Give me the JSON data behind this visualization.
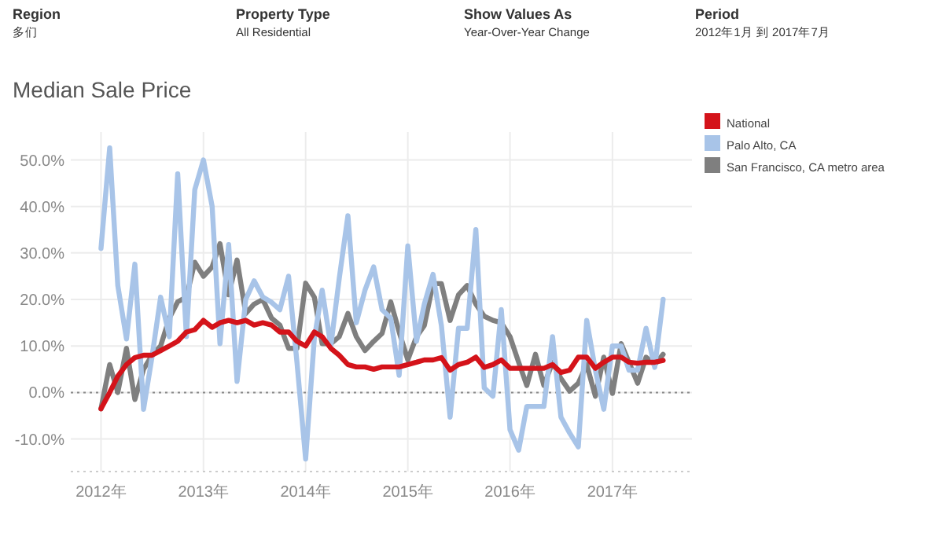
{
  "chart_data": {
    "type": "line",
    "title": "Median Sale Price",
    "annotations": [
      "Region",
      "多们",
      "Property Type",
      "All Residential",
      "Show Values As",
      "Year-Over-Year Change",
      "Period",
      "2012年1月 到 2017年7月"
    ],
    "x": [
      "2012-01",
      "2012-02",
      "2012-03",
      "2012-04",
      "2012-05",
      "2012-06",
      "2012-07",
      "2012-08",
      "2012-09",
      "2012-10",
      "2012-11",
      "2012-12",
      "2013-01",
      "2013-02",
      "2013-03",
      "2013-04",
      "2013-05",
      "2013-06",
      "2013-07",
      "2013-08",
      "2013-09",
      "2013-10",
      "2013-11",
      "2013-12",
      "2014-01",
      "2014-02",
      "2014-03",
      "2014-04",
      "2014-05",
      "2014-06",
      "2014-07",
      "2014-08",
      "2014-09",
      "2014-10",
      "2014-11",
      "2014-12",
      "2015-01",
      "2015-02",
      "2015-03",
      "2015-04",
      "2015-05",
      "2015-06",
      "2015-07",
      "2015-08",
      "2015-09",
      "2015-10",
      "2015-11",
      "2015-12",
      "2016-01",
      "2016-02",
      "2016-03",
      "2016-04",
      "2016-05",
      "2016-06",
      "2016-07",
      "2016-08",
      "2016-09",
      "2016-10",
      "2016-11",
      "2016-12",
      "2017-01",
      "2017-02",
      "2017-03",
      "2017-04",
      "2017-05",
      "2017-06",
      "2017-07"
    ],
    "series": [
      {
        "name": "National",
        "color": "#d4131a",
        "values": [
          -3.5,
          0,
          3.5,
          6,
          7.5,
          8,
          8,
          9,
          10,
          11,
          13,
          13.5,
          15.5,
          14,
          15,
          15.5,
          15,
          15.5,
          14.5,
          15,
          14.5,
          13,
          13,
          11,
          10,
          13,
          12,
          9.5,
          8,
          6,
          5.5,
          5.5,
          5,
          5.5,
          5.5,
          5.5,
          6,
          6.5,
          7,
          7,
          7.5,
          4.8,
          6,
          6.5,
          7.6,
          5.4,
          6,
          7,
          5.2,
          5.2,
          5.2,
          5.2,
          5.2,
          6,
          4.3,
          4.8,
          7.6,
          7.6,
          5.2,
          6.5,
          7.6,
          7.6,
          6.5,
          6.3,
          6.5,
          6.5,
          6.9
        ]
      },
      {
        "name": "Palo Alto, CA",
        "color": "#a8c4e8",
        "values": [
          31,
          52.6,
          23,
          11.5,
          27.6,
          -3.6,
          7.6,
          20.5,
          12,
          47,
          12,
          43.6,
          50,
          40,
          10.5,
          31.8,
          2.4,
          20,
          24,
          20.5,
          19.4,
          17.8,
          25,
          6.5,
          -14.3,
          11.6,
          22,
          10,
          24.5,
          38,
          15,
          22,
          27,
          17.8,
          16,
          3.7,
          31.5,
          11,
          19,
          25.4,
          14.4,
          -5.3,
          13.8,
          13.8,
          35,
          1,
          -0.8,
          17.8,
          -8,
          -12.4,
          -3,
          -3,
          -3,
          12,
          -5.3,
          -8.7,
          -11.7,
          15.5,
          4.8,
          -3.6,
          10,
          10,
          4.8,
          4.8,
          13.8,
          5.4,
          20
        ]
      },
      {
        "name": "San Francisco, CA metro area",
        "color": "#7f7f7f",
        "values": [
          -3.5,
          6,
          0,
          9.5,
          -1.5,
          5,
          8,
          10,
          16,
          19.5,
          20.5,
          28,
          25,
          27,
          32,
          21,
          28.5,
          17,
          19,
          20,
          16,
          14.5,
          9.5,
          9.5,
          23.5,
          20.5,
          10.5,
          10.5,
          12,
          17,
          12,
          9,
          11,
          12.7,
          19.5,
          13,
          7,
          12,
          14.4,
          23.4,
          23.4,
          15.5,
          21,
          23,
          19,
          16.4,
          15.5,
          15,
          12,
          6.5,
          1.5,
          8.2,
          1.5,
          6.5,
          3,
          0.3,
          2,
          6,
          -0.8,
          7.6,
          -0.2,
          10.5,
          6.5,
          2,
          7.6,
          6,
          8.2
        ]
      }
    ],
    "xlim": [
      "2011-09-15",
      "2017-10-12"
    ],
    "xticks": [
      {
        "value": "2012",
        "label": "2012年"
      },
      {
        "value": "2013",
        "label": "2013年"
      },
      {
        "value": "2014",
        "label": "2014年"
      },
      {
        "value": "2015",
        "label": "2015年"
      },
      {
        "value": "2016",
        "label": "2016年"
      },
      {
        "value": "2017",
        "label": "2017年"
      }
    ],
    "ylim": [
      -17,
      56
    ],
    "yticks": [
      {
        "value": -10,
        "label": "-10.0%"
      },
      {
        "value": 0,
        "label": "0.0%"
      },
      {
        "value": 10,
        "label": "10.0%"
      },
      {
        "value": 20,
        "label": "20.0%"
      },
      {
        "value": 30,
        "label": "30.0%"
      },
      {
        "value": 40,
        "label": "40.0%"
      },
      {
        "value": 50,
        "label": "50.0%"
      }
    ],
    "ref_lines": [
      {
        "axis": "y",
        "value": 0,
        "line_style": "dotted",
        "color": "#888888"
      }
    ],
    "grid": true,
    "legend": "right",
    "line_style": "solid"
  }
}
